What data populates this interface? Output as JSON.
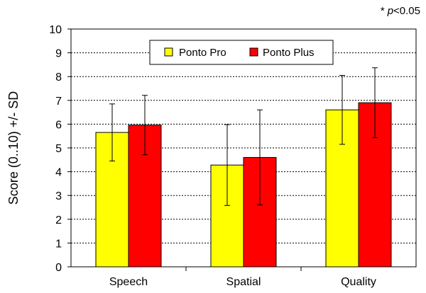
{
  "chart_data": {
    "type": "bar",
    "ylabel": "Score (0..10) +/- SD",
    "ylim": [
      0,
      10
    ],
    "yticks": [
      "0",
      "1",
      "2",
      "3",
      "4",
      "5",
      "6",
      "7",
      "8",
      "9",
      "10"
    ],
    "categories": [
      "Speech",
      "Spatial",
      "Quality"
    ],
    "series": [
      {
        "name": "Ponto Pro",
        "color": "#ffff00",
        "values": [
          5.65,
          4.28,
          6.6
        ],
        "sd": [
          1.2,
          1.7,
          1.45
        ]
      },
      {
        "name": "Ponto Plus",
        "color": "#ff0000",
        "values": [
          5.96,
          4.6,
          6.9
        ],
        "sd": [
          1.25,
          2.0,
          1.47
        ]
      }
    ],
    "significance": {
      "note_star": "*",
      "note_p": "p",
      "note_rest": "<0.05",
      "marker": "*",
      "category_index": 2
    },
    "grid": true,
    "legend_position": "top-center"
  }
}
